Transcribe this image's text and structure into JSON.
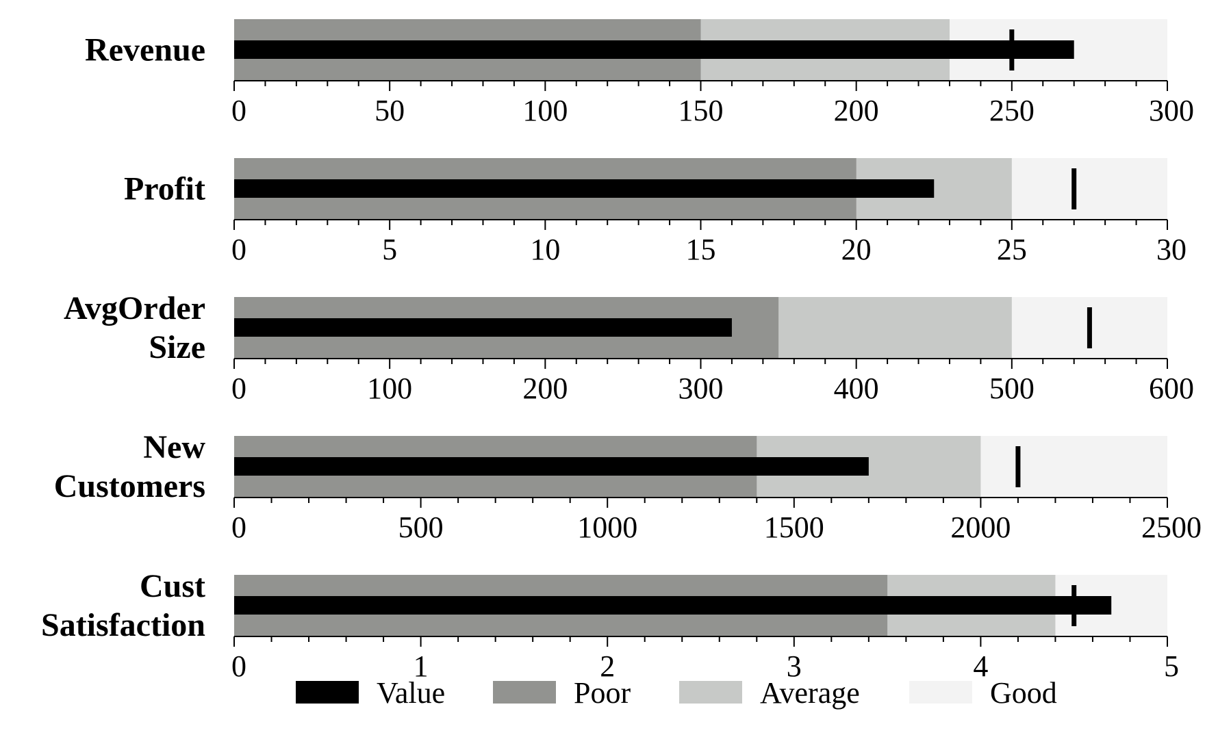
{
  "chart_data": {
    "type": "bullet",
    "legend": [
      {
        "key": "value",
        "label": "Value",
        "color": "#000000"
      },
      {
        "key": "poor",
        "label": "Poor",
        "color": "#929390"
      },
      {
        "key": "average",
        "label": "Average",
        "color": "#c7c9c7"
      },
      {
        "key": "good",
        "label": "Good",
        "color": "#f3f3f3"
      }
    ],
    "legend_position": "bottom",
    "colors": {
      "value": "#000000",
      "target": "#000000",
      "poor": "#929390",
      "average": "#c7c9c7",
      "good": "#f3f3f3",
      "axis": "#000000"
    },
    "metrics": [
      {
        "label": [
          "Revenue"
        ],
        "value": 270,
        "target": 250,
        "ranges": [
          150,
          230,
          300
        ],
        "xlim": [
          0,
          300
        ],
        "ticks": [
          0,
          50,
          100,
          150,
          200,
          250,
          300
        ],
        "minor_step": 10
      },
      {
        "label": [
          "Profit"
        ],
        "value": 22.5,
        "target": 27,
        "ranges": [
          20,
          25,
          30
        ],
        "xlim": [
          0,
          30
        ],
        "ticks": [
          0,
          5,
          10,
          15,
          20,
          25,
          30
        ],
        "minor_step": 1
      },
      {
        "label": [
          "AvgOrder",
          "Size"
        ],
        "value": 320,
        "target": 550,
        "ranges": [
          350,
          500,
          600
        ],
        "xlim": [
          0,
          600
        ],
        "ticks": [
          0,
          100,
          200,
          300,
          400,
          500,
          600
        ],
        "minor_step": 20
      },
      {
        "label": [
          "New",
          "Customers"
        ],
        "value": 1700,
        "target": 2100,
        "ranges": [
          1400,
          2000,
          2500
        ],
        "xlim": [
          0,
          2500
        ],
        "ticks": [
          0,
          500,
          1000,
          1500,
          2000,
          2500
        ],
        "minor_step": 100
      },
      {
        "label": [
          "Cust",
          "Satisfaction"
        ],
        "value": 4.7,
        "target": 4.5,
        "ranges": [
          3.5,
          4.4,
          5
        ],
        "xlim": [
          0,
          5
        ],
        "ticks": [
          0,
          1,
          2,
          3,
          4,
          5
        ],
        "minor_step": 0.2
      }
    ]
  }
}
